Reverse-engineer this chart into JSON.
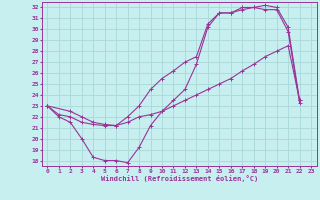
{
  "xlabel": "Windchill (Refroidissement éolien,°C)",
  "bg_color": "#c8efef",
  "grid_color": "#a8d8d8",
  "line_color": "#993399",
  "spine_color": "#993399",
  "xlim": [
    -0.5,
    23.5
  ],
  "ylim": [
    17.5,
    32.5
  ],
  "xticks": [
    0,
    1,
    2,
    3,
    4,
    5,
    6,
    7,
    8,
    9,
    10,
    11,
    12,
    13,
    14,
    15,
    16,
    17,
    18,
    19,
    20,
    21,
    22,
    23
  ],
  "yticks": [
    18,
    19,
    20,
    21,
    22,
    23,
    24,
    25,
    26,
    27,
    28,
    29,
    30,
    31,
    32
  ],
  "line1_x": [
    0,
    1,
    2,
    3,
    4,
    5,
    6,
    7,
    8,
    9,
    10,
    11,
    12,
    13,
    14,
    15,
    16,
    17,
    18,
    19,
    20,
    21,
    22
  ],
  "line1_y": [
    23,
    22,
    21.5,
    20,
    18.3,
    18,
    18,
    17.8,
    19.2,
    21.2,
    22.5,
    23.5,
    24.5,
    26.8,
    30.2,
    31.5,
    31.5,
    31.8,
    32.0,
    31.8,
    31.8,
    29.8,
    23.3
  ],
  "line2_x": [
    0,
    2,
    3,
    4,
    5,
    6,
    7,
    8,
    9,
    10,
    11,
    12,
    13,
    14,
    15,
    16,
    17,
    18,
    19,
    20,
    21,
    22
  ],
  "line2_y": [
    23,
    22.5,
    22,
    21.5,
    21.3,
    21.2,
    22,
    23.0,
    24.5,
    25.5,
    26.2,
    27.0,
    27.5,
    30.5,
    31.5,
    31.5,
    32.0,
    32.0,
    32.2,
    32.0,
    30.2,
    23.5
  ],
  "line3_x": [
    0,
    1,
    2,
    3,
    4,
    5,
    6,
    7,
    8,
    9,
    10,
    11,
    12,
    13,
    14,
    15,
    16,
    17,
    18,
    19,
    20,
    21,
    22
  ],
  "line3_y": [
    23,
    22.2,
    22.0,
    21.5,
    21.3,
    21.2,
    21.2,
    21.5,
    22.0,
    22.2,
    22.5,
    23.0,
    23.5,
    24.0,
    24.5,
    25.0,
    25.5,
    26.2,
    26.8,
    27.5,
    28.0,
    28.5,
    23.5
  ]
}
